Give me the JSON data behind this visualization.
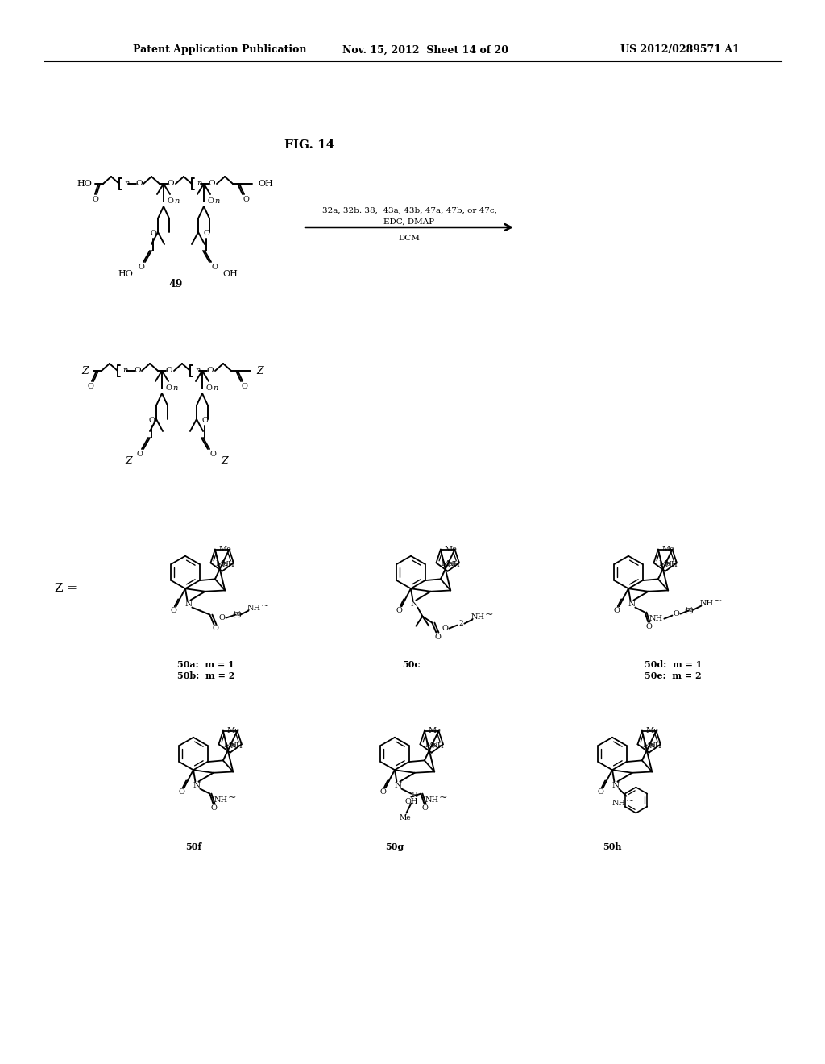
{
  "header_left": "Patent Application Publication",
  "header_center": "Nov. 15, 2012  Sheet 14 of 20",
  "header_right": "US 2012/0289571 A1",
  "fig_label": "FIG. 14",
  "compound_49": "49",
  "reagents_line1": "32a, 32b. 38,  43a, 43b, 47a, 47b, or 47c,",
  "reagents_line2": "EDC, DMAP",
  "reagents_line3": "DCM",
  "z_eq": "Z =",
  "labels_row1": [
    "50a:  m = 1\n50b:  m = 2",
    "50c",
    "50d:  m = 1\n50e:  m = 2"
  ],
  "labels_row2": [
    "50f",
    "50g",
    "50h"
  ],
  "background": "#ffffff"
}
